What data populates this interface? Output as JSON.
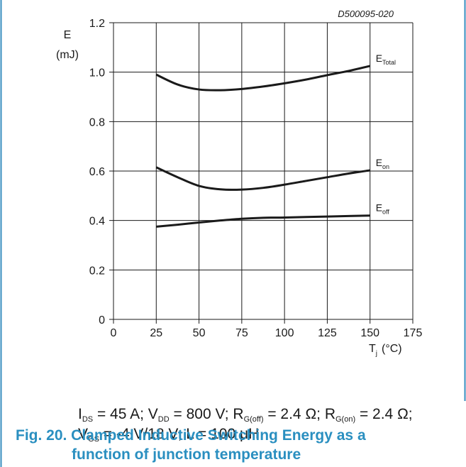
{
  "chart_data": {
    "type": "line",
    "doc_id": "D500095-020",
    "ylabel": "E",
    "yunit": "(mJ)",
    "xlabel": "T",
    "xlabel_sub": "j",
    "xunit": "(°C)",
    "xlim": [
      0,
      175
    ],
    "ylim": [
      0,
      1.2
    ],
    "x_ticks": [
      "0",
      "25",
      "50",
      "75",
      "100",
      "125",
      "150",
      "175"
    ],
    "y_ticks": [
      "0",
      "0.2",
      "0.4",
      "0.6",
      "0.8",
      "1.0",
      "1.2"
    ],
    "grid": true,
    "series": [
      {
        "name_main": "E",
        "name_sub": "Total",
        "x": [
          25,
          37.5,
          50,
          62.5,
          75,
          87.5,
          100,
          112.5,
          125,
          137.5,
          150
        ],
        "y": [
          0.99,
          0.95,
          0.93,
          0.927,
          0.932,
          0.942,
          0.955,
          0.97,
          0.988,
          1.005,
          1.025
        ]
      },
      {
        "name_main": "E",
        "name_sub": "on",
        "x": [
          25,
          37.5,
          50,
          62.5,
          75,
          87.5,
          100,
          112.5,
          125,
          137.5,
          150
        ],
        "y": [
          0.615,
          0.575,
          0.54,
          0.526,
          0.525,
          0.532,
          0.545,
          0.56,
          0.575,
          0.59,
          0.603
        ]
      },
      {
        "name_main": "E",
        "name_sub": "off",
        "x": [
          25,
          37.5,
          50,
          62.5,
          75,
          87.5,
          100,
          112.5,
          125,
          137.5,
          150
        ],
        "y": [
          0.375,
          0.383,
          0.392,
          0.4,
          0.407,
          0.411,
          0.412,
          0.414,
          0.416,
          0.418,
          0.42
        ]
      }
    ]
  },
  "conditions": {
    "ids_label": "I",
    "ids_sub": "DS",
    "ids_value": " = 45 A; ",
    "vdd_label": "V",
    "vdd_sub": "DD",
    "vdd_value": " = 800 V; ",
    "rgoff_label": "R",
    "rgoff_sub": "G(off)",
    "rgoff_value": " = 2.4 Ω; ",
    "rgon_label": "R",
    "rgon_sub": "G(on)",
    "rgon_value": " = 2.4 Ω;",
    "vgs_label": "V",
    "vgs_sub": "GS",
    "vgs_value": " = -4 V/18 V; L = 100 μH"
  },
  "caption": {
    "line1": "Fig. 20. Clamped Inductive Switching Energy as a",
    "line2": "function of junction temperature"
  },
  "colors": {
    "frame": "#3a8fbf",
    "caption": "#2a8fc0",
    "curve": "#1a1a1a",
    "grid": "#1a1a1a"
  }
}
